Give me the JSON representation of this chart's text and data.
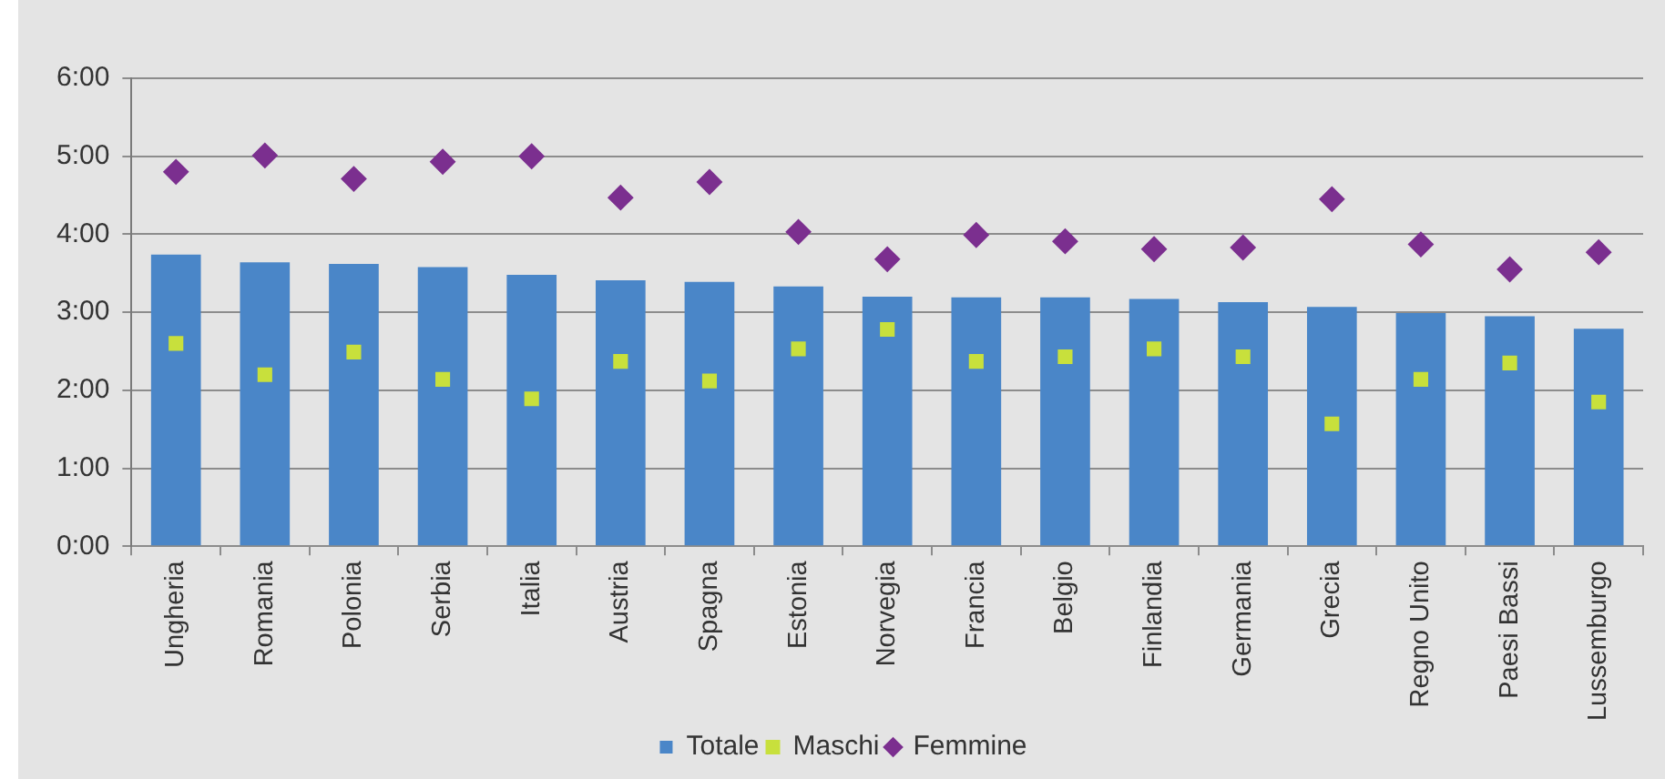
{
  "chart_data": {
    "type": "bar",
    "categories": [
      "Ungheria",
      "Romania",
      "Polonia",
      "Serbia",
      "Italia",
      "Austria",
      "Spagna",
      "Estonia",
      "Norvegia",
      "Francia",
      "Belgio",
      "Finlandia",
      "Germania",
      "Grecia",
      "Regno Unito",
      "Paesi Bassi",
      "Lussemburgo"
    ],
    "series": [
      {
        "name": "Totale",
        "color": "#4a86c8",
        "values": [
          3.74,
          3.64,
          3.62,
          3.58,
          3.48,
          3.41,
          3.39,
          3.33,
          3.2,
          3.19,
          3.19,
          3.17,
          3.13,
          3.07,
          2.99,
          2.95,
          2.79
        ]
      },
      {
        "name": "Maschi",
        "type": "scatter",
        "marker": "square",
        "color": "#c8e03c",
        "x": [
          "Ungheria",
          "Romania",
          "Polonia",
          "Serbia",
          "Italia",
          "Austria",
          "Spagna",
          "Estonia",
          "Norvegia",
          "Francia",
          "Belgio",
          "Finlandia",
          "Germania",
          "Grecia",
          "Regno Unito",
          "Paesi Bassi",
          "Lussemburgo"
        ],
        "values": [
          2.6,
          2.2,
          2.49,
          2.14,
          1.89,
          2.37,
          2.12,
          2.53,
          2.78,
          2.37,
          2.43,
          2.53,
          2.43,
          1.57,
          2.14,
          2.35,
          1.85
        ]
      },
      {
        "name": "Femmine",
        "type": "scatter",
        "marker": "diamond",
        "color": "#7b2f8f",
        "x": [
          "Ungheria",
          "Romania",
          "Polonia",
          "Serbia",
          "Italia",
          "Austria",
          "Spagna",
          "Estonia",
          "Norvegia",
          "Francia",
          "Belgio",
          "Finlandia",
          "Germania",
          "Grecia",
          "Regno Unito",
          "Paesi Bassi",
          "Lussemburgo"
        ],
        "values": [
          4.8,
          5.01,
          4.71,
          4.93,
          5.0,
          4.47,
          4.67,
          4.03,
          3.68,
          3.99,
          3.91,
          3.81,
          3.83,
          4.45,
          3.87,
          3.55,
          3.77
        ]
      }
    ],
    "ylim": [
      0,
      6
    ],
    "yticks": [
      {
        "value": 0,
        "label": "0:00"
      },
      {
        "value": 1,
        "label": "1:00"
      },
      {
        "value": 2,
        "label": "2:00"
      },
      {
        "value": 3,
        "label": "3:00"
      },
      {
        "value": 4,
        "label": "4:00"
      },
      {
        "value": 5,
        "label": "5:00"
      },
      {
        "value": 6,
        "label": "6:00"
      }
    ],
    "grid": "y",
    "legend": "bottom"
  }
}
